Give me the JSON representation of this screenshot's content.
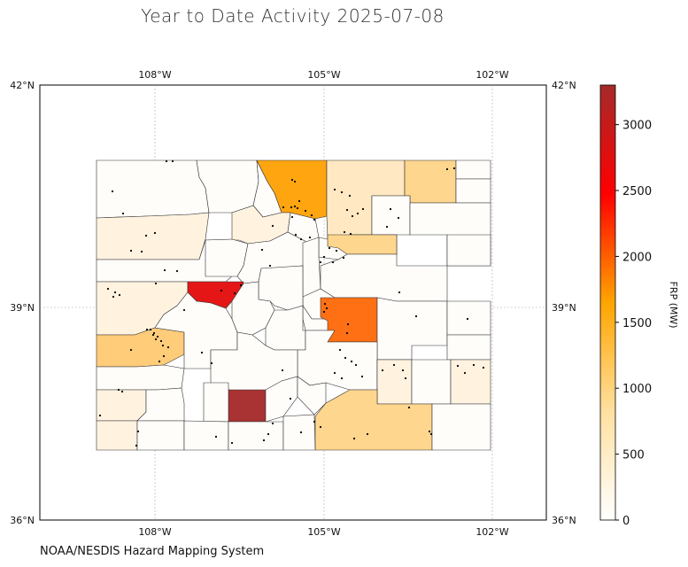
{
  "title": "Year to Date Activity 2025-07-08",
  "source": "NOAA/NESDIS Hazard Mapping System",
  "colorbar": {
    "label": "FRP (MW)",
    "ticks": [
      "0",
      "500",
      "1000",
      "1500",
      "2000",
      "2500",
      "3000"
    ],
    "min": 0,
    "max": 3300,
    "stops": [
      "#ffffff",
      "#ffe0a0",
      "#ffa500",
      "#ff0000",
      "#a52a2a"
    ]
  },
  "axes": {
    "lon_labels": [
      "108°W",
      "105°W",
      "102°W"
    ],
    "lat_labels": [
      "42°N",
      "39°N",
      "36°N"
    ]
  },
  "colors": {
    "c0": "#fffdfa",
    "c1": "#fff3e0",
    "c2": "#ffe8c2",
    "c3": "#ffd68e",
    "c4": "#ffcc7a",
    "c5": "#ffa510",
    "c6": "#ff7014",
    "c7": "#e51616",
    "c8": "#a93232"
  }
}
